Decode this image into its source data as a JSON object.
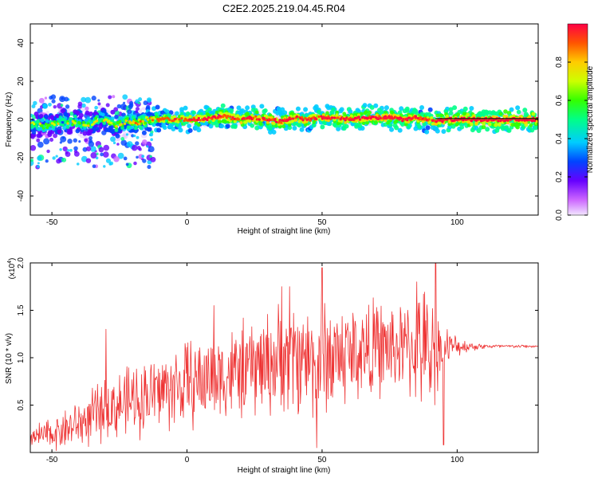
{
  "chart_data": [
    {
      "type": "heatmap",
      "title": "C2E2.2025.219.04.45.R04",
      "xlabel": "Height of straight line (km)",
      "ylabel": "Frequency (Hz)",
      "xlim": [
        -58,
        130
      ],
      "ylim": [
        -50,
        50
      ],
      "xticks": [
        -50,
        0,
        50,
        100
      ],
      "yticks": [
        40,
        20,
        0,
        -20,
        -40
      ],
      "colorbar": {
        "label": "Normalized spectral amplitude",
        "range": [
          0,
          1
        ],
        "ticks": [
          "0.0",
          "0.2",
          "0.4",
          "0.6",
          "0.8"
        ]
      },
      "ridge": {
        "x": [
          -58,
          -52,
          -47,
          -42,
          -38,
          -35,
          -32,
          -29,
          -26,
          -22,
          -18,
          -14,
          -10,
          -5,
          0,
          5,
          10,
          13,
          16,
          20,
          25,
          30,
          35,
          40,
          45,
          50,
          55,
          60,
          65,
          70,
          75,
          80,
          85,
          88,
          92,
          96,
          100,
          110,
          120,
          130
        ],
        "y": [
          -2,
          -3,
          -2,
          -1,
          -3,
          -2,
          1,
          -1,
          -3,
          -1,
          -2,
          0,
          0,
          0,
          0,
          0,
          1,
          2,
          1,
          0,
          1,
          0,
          -1,
          1,
          0,
          1,
          1,
          0,
          1,
          1,
          1,
          0,
          1,
          0,
          -1,
          0,
          0,
          0,
          0,
          0
        ],
        "intensity": [
          0.3,
          0.3,
          0.35,
          0.3,
          0.3,
          0.3,
          0.35,
          0.35,
          0.4,
          0.45,
          0.5,
          0.55,
          0.6,
          0.65,
          0.7,
          0.75,
          0.8,
          0.8,
          0.75,
          0.8,
          0.8,
          0.8,
          0.8,
          0.8,
          0.75,
          0.8,
          0.85,
          0.8,
          0.85,
          0.85,
          0.85,
          0.85,
          0.8,
          0.7,
          0.75,
          0.85,
          0.9,
          0.95,
          0.95,
          0.95
        ]
      },
      "scatter_region": {
        "xlim": [
          -58,
          -12
        ],
        "ylim": [
          -25,
          12
        ]
      }
    },
    {
      "type": "line",
      "xlabel": "Height of straight line (km)",
      "ylabel": "SNR (10 * v/v)",
      "multiplier": "(x10^4)",
      "xlim": [
        -58,
        130
      ],
      "ylim": [
        0,
        2.0
      ],
      "xticks": [
        -50,
        0,
        50,
        100
      ],
      "yticks": [
        0.5,
        1.0,
        1.5,
        2.0
      ],
      "ytick_labels": [
        "0.5",
        "1.0",
        "1.5",
        "2.0"
      ],
      "color": "#ee3333",
      "envelope": {
        "x": [
          -58,
          -50,
          -40,
          -30,
          -20,
          -10,
          0,
          10,
          20,
          30,
          40,
          50,
          60,
          70,
          80,
          85,
          90,
          95,
          100,
          105,
          110,
          120,
          130
        ],
        "mean": [
          0.15,
          0.2,
          0.3,
          0.45,
          0.55,
          0.65,
          0.72,
          0.8,
          0.85,
          0.95,
          1.0,
          1.0,
          1.05,
          1.1,
          1.1,
          1.1,
          1.05,
          1.1,
          1.12,
          1.12,
          1.12,
          1.12,
          1.12
        ],
        "amp": [
          0.15,
          0.2,
          0.3,
          0.4,
          0.45,
          0.5,
          0.55,
          0.55,
          0.6,
          0.65,
          0.7,
          0.75,
          0.65,
          0.6,
          0.55,
          0.7,
          0.8,
          0.3,
          0.12,
          0.06,
          0.03,
          0.02,
          0.02
        ]
      },
      "peaks": [
        {
          "x": -30,
          "y": 1.3
        },
        {
          "x": 10,
          "y": 1.55
        },
        {
          "x": 35,
          "y": 1.75
        },
        {
          "x": 38,
          "y": 1.75
        },
        {
          "x": 50,
          "y": 1.95
        },
        {
          "x": 85,
          "y": 1.8
        },
        {
          "x": 92,
          "y": 2.0
        },
        {
          "x": 48,
          "y": 0.05
        },
        {
          "x": 95,
          "y": 0.08
        }
      ]
    }
  ]
}
